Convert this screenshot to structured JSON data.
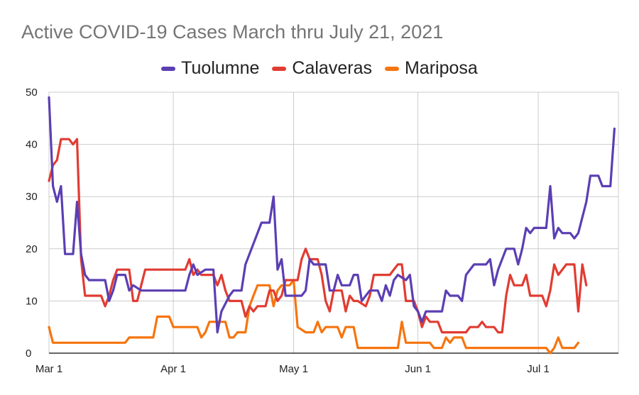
{
  "chart_data": {
    "type": "line",
    "title": "Active COVID-19 Cases March thru July 21, 2021",
    "x_range": [
      "2021-03-01",
      "2021-07-21"
    ],
    "x_ticks": [
      {
        "date": "2021-03-01",
        "label": "Mar 1"
      },
      {
        "date": "2021-04-01",
        "label": "Apr 1"
      },
      {
        "date": "2021-05-01",
        "label": "May 1"
      },
      {
        "date": "2021-06-01",
        "label": "Jun 1"
      },
      {
        "date": "2021-07-01",
        "label": "Jul 1"
      }
    ],
    "ylim": [
      0,
      50
    ],
    "y_ticks": [
      0,
      10,
      20,
      30,
      40,
      50
    ],
    "grid": true,
    "legend_position": "top",
    "series": [
      {
        "name": "Tuolumne",
        "color": "#5B3FB3",
        "points": [
          [
            "2021-03-01",
            49
          ],
          [
            "2021-03-02",
            32
          ],
          [
            "2021-03-03",
            29
          ],
          [
            "2021-03-04",
            32
          ],
          [
            "2021-03-05",
            19
          ],
          [
            "2021-03-07",
            19
          ],
          [
            "2021-03-08",
            29
          ],
          [
            "2021-03-09",
            19
          ],
          [
            "2021-03-10",
            15
          ],
          [
            "2021-03-11",
            14
          ],
          [
            "2021-03-15",
            14
          ],
          [
            "2021-03-16",
            10
          ],
          [
            "2021-03-17",
            12
          ],
          [
            "2021-03-18",
            15
          ],
          [
            "2021-03-20",
            15
          ],
          [
            "2021-03-21",
            12
          ],
          [
            "2021-03-22",
            13
          ],
          [
            "2021-03-24",
            12
          ],
          [
            "2021-03-27",
            12
          ],
          [
            "2021-04-01",
            12
          ],
          [
            "2021-04-04",
            12
          ],
          [
            "2021-04-05",
            15
          ],
          [
            "2021-04-06",
            17
          ],
          [
            "2021-04-07",
            15
          ],
          [
            "2021-04-09",
            16
          ],
          [
            "2021-04-11",
            16
          ],
          [
            "2021-04-12",
            4
          ],
          [
            "2021-04-13",
            8
          ],
          [
            "2021-04-15",
            11
          ],
          [
            "2021-04-16",
            12
          ],
          [
            "2021-04-18",
            12
          ],
          [
            "2021-04-19",
            17
          ],
          [
            "2021-04-20",
            19
          ],
          [
            "2021-04-22",
            23
          ],
          [
            "2021-04-23",
            25
          ],
          [
            "2021-04-25",
            25
          ],
          [
            "2021-04-26",
            30
          ],
          [
            "2021-04-27",
            16
          ],
          [
            "2021-04-28",
            18
          ],
          [
            "2021-04-29",
            11
          ],
          [
            "2021-05-01",
            11
          ],
          [
            "2021-05-03",
            11
          ],
          [
            "2021-05-04",
            12
          ],
          [
            "2021-05-05",
            18
          ],
          [
            "2021-05-06",
            17
          ],
          [
            "2021-05-08",
            17
          ],
          [
            "2021-05-09",
            17
          ],
          [
            "2021-05-10",
            12
          ],
          [
            "2021-05-11",
            12
          ],
          [
            "2021-05-12",
            15
          ],
          [
            "2021-05-13",
            13
          ],
          [
            "2021-05-15",
            13
          ],
          [
            "2021-05-16",
            15
          ],
          [
            "2021-05-17",
            15
          ],
          [
            "2021-05-18",
            10
          ],
          [
            "2021-05-20",
            12
          ],
          [
            "2021-05-22",
            12
          ],
          [
            "2021-05-23",
            10
          ],
          [
            "2021-05-24",
            13
          ],
          [
            "2021-05-25",
            11
          ],
          [
            "2021-05-26",
            14
          ],
          [
            "2021-05-27",
            15
          ],
          [
            "2021-05-29",
            14
          ],
          [
            "2021-05-30",
            15
          ],
          [
            "2021-05-31",
            9
          ],
          [
            "2021-06-01",
            8
          ],
          [
            "2021-06-02",
            6
          ],
          [
            "2021-06-03",
            8
          ],
          [
            "2021-06-06",
            8
          ],
          [
            "2021-06-07",
            8
          ],
          [
            "2021-06-08",
            12
          ],
          [
            "2021-06-09",
            11
          ],
          [
            "2021-06-11",
            11
          ],
          [
            "2021-06-12",
            10
          ],
          [
            "2021-06-13",
            15
          ],
          [
            "2021-06-15",
            17
          ],
          [
            "2021-06-18",
            17
          ],
          [
            "2021-06-19",
            18
          ],
          [
            "2021-06-20",
            13
          ],
          [
            "2021-06-21",
            16
          ],
          [
            "2021-06-23",
            20
          ],
          [
            "2021-06-25",
            20
          ],
          [
            "2021-06-26",
            17
          ],
          [
            "2021-06-27",
            20
          ],
          [
            "2021-06-28",
            24
          ],
          [
            "2021-06-29",
            23
          ],
          [
            "2021-06-30",
            24
          ],
          [
            "2021-07-03",
            24
          ],
          [
            "2021-07-04",
            32
          ],
          [
            "2021-07-05",
            22
          ],
          [
            "2021-07-06",
            24
          ],
          [
            "2021-07-07",
            23
          ],
          [
            "2021-07-09",
            23
          ],
          [
            "2021-07-10",
            22
          ],
          [
            "2021-07-11",
            23
          ],
          [
            "2021-07-13",
            29
          ],
          [
            "2021-07-14",
            34
          ],
          [
            "2021-07-16",
            34
          ],
          [
            "2021-07-17",
            32
          ],
          [
            "2021-07-19",
            32
          ],
          [
            "2021-07-20",
            43
          ]
        ]
      },
      {
        "name": "Calaveras",
        "color": "#E13C32",
        "points": [
          [
            "2021-03-01",
            33
          ],
          [
            "2021-03-02",
            36
          ],
          [
            "2021-03-03",
            37
          ],
          [
            "2021-03-04",
            41
          ],
          [
            "2021-03-06",
            41
          ],
          [
            "2021-03-07",
            40
          ],
          [
            "2021-03-08",
            41
          ],
          [
            "2021-03-09",
            18
          ],
          [
            "2021-03-10",
            11
          ],
          [
            "2021-03-14",
            11
          ],
          [
            "2021-03-15",
            9
          ],
          [
            "2021-03-16",
            11
          ],
          [
            "2021-03-17",
            14
          ],
          [
            "2021-03-18",
            16
          ],
          [
            "2021-03-21",
            16
          ],
          [
            "2021-03-22",
            10
          ],
          [
            "2021-03-23",
            10
          ],
          [
            "2021-03-24",
            13
          ],
          [
            "2021-03-25",
            16
          ],
          [
            "2021-04-04",
            16
          ],
          [
            "2021-04-05",
            18
          ],
          [
            "2021-04-06",
            15
          ],
          [
            "2021-04-07",
            16
          ],
          [
            "2021-04-08",
            15
          ],
          [
            "2021-04-11",
            15
          ],
          [
            "2021-04-12",
            13
          ],
          [
            "2021-04-13",
            15
          ],
          [
            "2021-04-14",
            12
          ],
          [
            "2021-04-15",
            10
          ],
          [
            "2021-04-16",
            10
          ],
          [
            "2021-04-18",
            10
          ],
          [
            "2021-04-19",
            7
          ],
          [
            "2021-04-20",
            9
          ],
          [
            "2021-04-21",
            8
          ],
          [
            "2021-04-22",
            9
          ],
          [
            "2021-04-24",
            9
          ],
          [
            "2021-04-25",
            12
          ],
          [
            "2021-04-26",
            12
          ],
          [
            "2021-04-27",
            10
          ],
          [
            "2021-04-28",
            11
          ],
          [
            "2021-04-29",
            14
          ],
          [
            "2021-05-01",
            14
          ],
          [
            "2021-05-02",
            14
          ],
          [
            "2021-05-03",
            18
          ],
          [
            "2021-05-04",
            20
          ],
          [
            "2021-05-05",
            18
          ],
          [
            "2021-05-07",
            18
          ],
          [
            "2021-05-08",
            15
          ],
          [
            "2021-05-09",
            10
          ],
          [
            "2021-05-10",
            8
          ],
          [
            "2021-05-11",
            12
          ],
          [
            "2021-05-13",
            12
          ],
          [
            "2021-05-14",
            8
          ],
          [
            "2021-05-15",
            11
          ],
          [
            "2021-05-16",
            10
          ],
          [
            "2021-05-17",
            10
          ],
          [
            "2021-05-19",
            9
          ],
          [
            "2021-05-20",
            11
          ],
          [
            "2021-05-21",
            15
          ],
          [
            "2021-05-25",
            15
          ],
          [
            "2021-05-26",
            16
          ],
          [
            "2021-05-27",
            17
          ],
          [
            "2021-05-28",
            17
          ],
          [
            "2021-05-29",
            10
          ],
          [
            "2021-05-31",
            10
          ],
          [
            "2021-06-01",
            8
          ],
          [
            "2021-06-02",
            5
          ],
          [
            "2021-06-03",
            7
          ],
          [
            "2021-06-04",
            6
          ],
          [
            "2021-06-06",
            6
          ],
          [
            "2021-06-07",
            4
          ],
          [
            "2021-06-13",
            4
          ],
          [
            "2021-06-14",
            5
          ],
          [
            "2021-06-16",
            5
          ],
          [
            "2021-06-17",
            6
          ],
          [
            "2021-06-18",
            5
          ],
          [
            "2021-06-20",
            5
          ],
          [
            "2021-06-21",
            4
          ],
          [
            "2021-06-22",
            4
          ],
          [
            "2021-06-23",
            11
          ],
          [
            "2021-06-24",
            15
          ],
          [
            "2021-06-25",
            13
          ],
          [
            "2021-06-27",
            13
          ],
          [
            "2021-06-28",
            15
          ],
          [
            "2021-06-29",
            11
          ],
          [
            "2021-07-02",
            11
          ],
          [
            "2021-07-03",
            9
          ],
          [
            "2021-07-04",
            12
          ],
          [
            "2021-07-05",
            17
          ],
          [
            "2021-07-06",
            15
          ],
          [
            "2021-07-08",
            17
          ],
          [
            "2021-07-10",
            17
          ],
          [
            "2021-07-11",
            8
          ],
          [
            "2021-07-12",
            17
          ],
          [
            "2021-07-13",
            13
          ]
        ]
      },
      {
        "name": "Mariposa",
        "color": "#F6750F",
        "points": [
          [
            "2021-03-01",
            5
          ],
          [
            "2021-03-02",
            2
          ],
          [
            "2021-03-20",
            2
          ],
          [
            "2021-03-21",
            3
          ],
          [
            "2021-03-27",
            3
          ],
          [
            "2021-03-28",
            7
          ],
          [
            "2021-03-31",
            7
          ],
          [
            "2021-04-01",
            5
          ],
          [
            "2021-04-07",
            5
          ],
          [
            "2021-04-08",
            3
          ],
          [
            "2021-04-09",
            4
          ],
          [
            "2021-04-10",
            6
          ],
          [
            "2021-04-14",
            6
          ],
          [
            "2021-04-15",
            3
          ],
          [
            "2021-04-16",
            3
          ],
          [
            "2021-04-17",
            4
          ],
          [
            "2021-04-19",
            4
          ],
          [
            "2021-04-20",
            9
          ],
          [
            "2021-04-21",
            11
          ],
          [
            "2021-04-22",
            13
          ],
          [
            "2021-04-25",
            13
          ],
          [
            "2021-04-26",
            9
          ],
          [
            "2021-04-27",
            12
          ],
          [
            "2021-04-28",
            13
          ],
          [
            "2021-04-30",
            13
          ],
          [
            "2021-05-01",
            14
          ],
          [
            "2021-05-02",
            5
          ],
          [
            "2021-05-04",
            4
          ],
          [
            "2021-05-06",
            4
          ],
          [
            "2021-05-07",
            6
          ],
          [
            "2021-05-08",
            4
          ],
          [
            "2021-05-09",
            5
          ],
          [
            "2021-05-12",
            5
          ],
          [
            "2021-05-13",
            3
          ],
          [
            "2021-05-14",
            5
          ],
          [
            "2021-05-16",
            5
          ],
          [
            "2021-05-17",
            1
          ],
          [
            "2021-05-27",
            1
          ],
          [
            "2021-05-28",
            6
          ],
          [
            "2021-05-29",
            2
          ],
          [
            "2021-06-04",
            2
          ],
          [
            "2021-06-05",
            1
          ],
          [
            "2021-06-07",
            1
          ],
          [
            "2021-06-08",
            3
          ],
          [
            "2021-06-09",
            2
          ],
          [
            "2021-06-10",
            3
          ],
          [
            "2021-06-12",
            3
          ],
          [
            "2021-06-13",
            1
          ],
          [
            "2021-07-01",
            1
          ],
          [
            "2021-07-03",
            1
          ],
          [
            "2021-07-04",
            0
          ],
          [
            "2021-07-05",
            1
          ],
          [
            "2021-07-06",
            3
          ],
          [
            "2021-07-07",
            1
          ],
          [
            "2021-07-10",
            1
          ],
          [
            "2021-07-11",
            2
          ]
        ]
      }
    ]
  }
}
